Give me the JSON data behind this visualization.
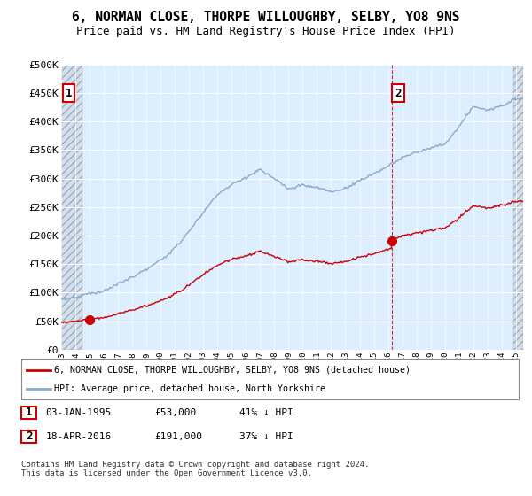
{
  "title": "6, NORMAN CLOSE, THORPE WILLOUGHBY, SELBY, YO8 9NS",
  "subtitle": "Price paid vs. HM Land Registry's House Price Index (HPI)",
  "ylabel_ticks": [
    0,
    50000,
    100000,
    150000,
    200000,
    250000,
    300000,
    350000,
    400000,
    450000,
    500000
  ],
  "ylabel_labels": [
    "£0",
    "£50K",
    "£100K",
    "£150K",
    "£200K",
    "£250K",
    "£300K",
    "£350K",
    "£400K",
    "£450K",
    "£500K"
  ],
  "xlim": [
    1993.0,
    2025.5
  ],
  "ylim": [
    0,
    500000
  ],
  "hatch_start": 1993.0,
  "hatch_end_year": 1994.5,
  "hatch_start2": 2024.8,
  "hatch_end2": 2025.5,
  "sale1_year": 1995.0,
  "sale1_price": 53000,
  "sale2_year": 2016.3,
  "sale2_price": 191000,
  "sale2_vline_year": 2016.3,
  "red_color": "#cc0000",
  "blue_color": "#88aacc",
  "legend_line1": "6, NORMAN CLOSE, THORPE WILLOUGHBY, SELBY, YO8 9NS (detached house)",
  "legend_line2": "HPI: Average price, detached house, North Yorkshire",
  "table_row1": [
    "1",
    "03-JAN-1995",
    "£53,000",
    "41% ↓ HPI"
  ],
  "table_row2": [
    "2",
    "18-APR-2016",
    "£191,000",
    "37% ↓ HPI"
  ],
  "footnote": "Contains HM Land Registry data © Crown copyright and database right 2024.\nThis data is licensed under the Open Government Licence v3.0.",
  "background_color": "#ffffff",
  "plot_bg_color": "#ddeeff",
  "grid_color": "#ffffff",
  "title_fontsize": 10.5,
  "subtitle_fontsize": 9
}
